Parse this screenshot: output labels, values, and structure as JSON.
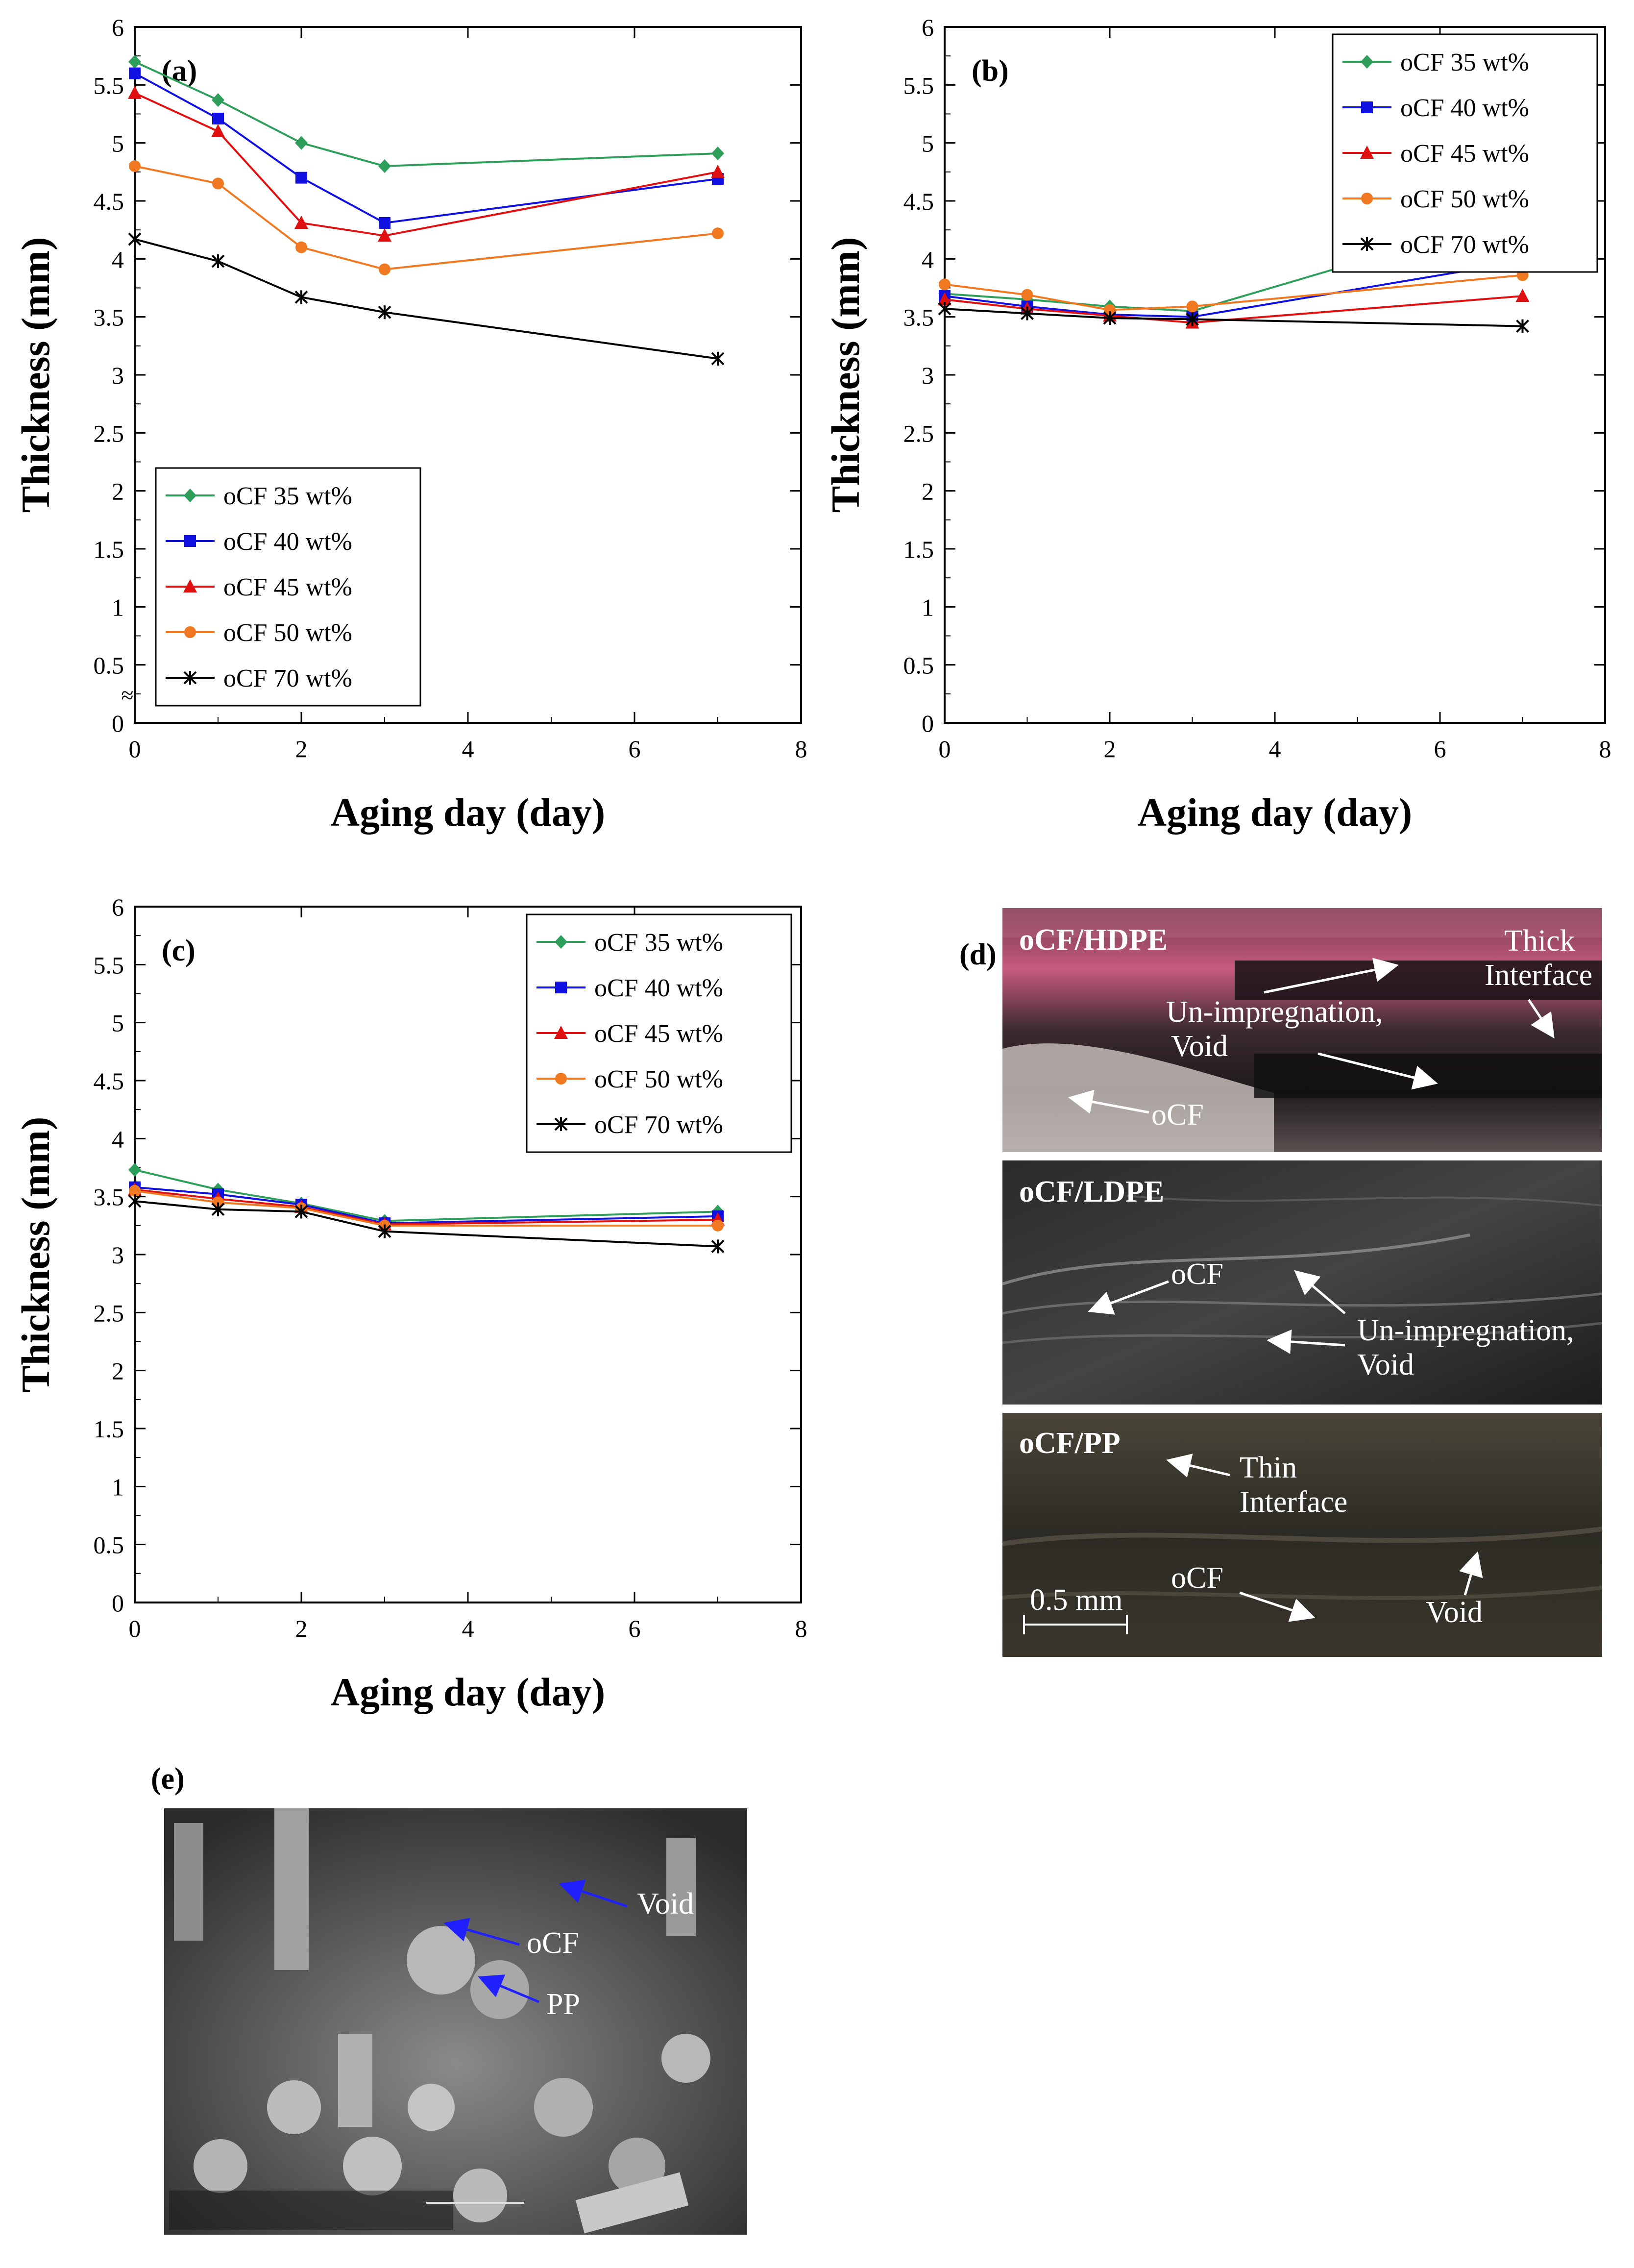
{
  "chart_data": [
    {
      "type": "line",
      "panel_label": "(a)",
      "xlabel": "Aging day (day)",
      "ylabel": "Thickness (mm)",
      "xlim": [
        0,
        8
      ],
      "ylim": [
        0,
        6
      ],
      "xticks": [
        "0",
        "2",
        "4",
        "6",
        "8"
      ],
      "yticks": [
        "0",
        "0.5",
        "1",
        "1.5",
        "2",
        "2.5",
        "3",
        "3.5",
        "4",
        "4.5",
        "5",
        "5.5",
        "6"
      ],
      "axis_break": "≈",
      "legend_position": "bottom-left",
      "x": [
        0,
        1,
        2,
        3,
        7
      ],
      "series": [
        {
          "name": "oCF 35 wt%",
          "color": "#2e9e5b",
          "marker": "diamond",
          "values": [
            5.7,
            5.37,
            5.0,
            4.8,
            4.91
          ]
        },
        {
          "name": "oCF 40 wt%",
          "color": "#1010e0",
          "marker": "square",
          "values": [
            5.6,
            5.21,
            4.7,
            4.31,
            4.69
          ]
        },
        {
          "name": "oCF 45 wt%",
          "color": "#e01010",
          "marker": "triangle",
          "values": [
            5.43,
            5.1,
            4.31,
            4.2,
            4.75
          ]
        },
        {
          "name": "oCF 50 wt%",
          "color": "#f07820",
          "marker": "circle",
          "values": [
            4.8,
            4.65,
            4.1,
            3.91,
            4.22
          ]
        },
        {
          "name": "oCF 70 wt%",
          "color": "#000000",
          "marker": "star",
          "values": [
            4.17,
            3.98,
            3.67,
            3.54,
            3.14
          ]
        }
      ]
    },
    {
      "type": "line",
      "panel_label": "(b)",
      "xlabel": "Aging day (day)",
      "ylabel": "Thickness (mm)",
      "xlim": [
        0,
        8
      ],
      "ylim": [
        0,
        6
      ],
      "xticks": [
        "0",
        "2",
        "4",
        "6",
        "8"
      ],
      "yticks": [
        "0",
        "0.5",
        "1",
        "1.5",
        "2",
        "2.5",
        "3",
        "3.5",
        "4",
        "4.5",
        "5",
        "5.5",
        "6"
      ],
      "legend_position": "top-right",
      "x": [
        0,
        1,
        2,
        3,
        7
      ],
      "series": [
        {
          "name": "oCF 35 wt%",
          "color": "#2e9e5b",
          "marker": "diamond",
          "values": [
            3.7,
            3.65,
            3.59,
            3.55,
            4.39
          ]
        },
        {
          "name": "oCF 40 wt%",
          "color": "#1010e0",
          "marker": "square",
          "values": [
            3.68,
            3.59,
            3.52,
            3.5,
            3.98
          ]
        },
        {
          "name": "oCF 45 wt%",
          "color": "#e01010",
          "marker": "triangle",
          "values": [
            3.65,
            3.57,
            3.51,
            3.45,
            3.68
          ]
        },
        {
          "name": "oCF 50 wt%",
          "color": "#f07820",
          "marker": "circle",
          "values": [
            3.78,
            3.69,
            3.56,
            3.59,
            3.86
          ]
        },
        {
          "name": "oCF 70 wt%",
          "color": "#000000",
          "marker": "star",
          "values": [
            3.57,
            3.53,
            3.49,
            3.48,
            3.42
          ]
        }
      ]
    },
    {
      "type": "line",
      "panel_label": "(c)",
      "xlabel": "Aging day (day)",
      "ylabel": "Thickness (mm)",
      "xlim": [
        0,
        8
      ],
      "ylim": [
        0,
        6
      ],
      "xticks": [
        "0",
        "2",
        "4",
        "6",
        "8"
      ],
      "yticks": [
        "0",
        "0.5",
        "1",
        "1.5",
        "2",
        "2.5",
        "3",
        "3.5",
        "4",
        "4.5",
        "5",
        "5.5",
        "6"
      ],
      "legend_position": "top-right",
      "x": [
        0,
        1,
        2,
        3,
        7
      ],
      "series": [
        {
          "name": "oCF 35 wt%",
          "color": "#2e9e5b",
          "marker": "diamond",
          "values": [
            3.73,
            3.56,
            3.44,
            3.29,
            3.37
          ]
        },
        {
          "name": "oCF 40 wt%",
          "color": "#1010e0",
          "marker": "square",
          "values": [
            3.58,
            3.52,
            3.43,
            3.27,
            3.33
          ]
        },
        {
          "name": "oCF 45 wt%",
          "color": "#e01010",
          "marker": "triangle",
          "values": [
            3.56,
            3.48,
            3.41,
            3.26,
            3.3
          ]
        },
        {
          "name": "oCF 50 wt%",
          "color": "#f07820",
          "marker": "circle",
          "values": [
            3.55,
            3.45,
            3.4,
            3.25,
            3.25
          ]
        },
        {
          "name": "oCF 70 wt%",
          "color": "#000000",
          "marker": "star",
          "values": [
            3.46,
            3.39,
            3.37,
            3.2,
            3.07
          ]
        }
      ]
    }
  ],
  "panel_d": {
    "panel_label": "(d)",
    "hdpe": {
      "title": "oCF/HDPE",
      "thick": "Thick",
      "interface": "Interface",
      "unimp": "Un-impregnation,",
      "void": "Void",
      "ocf": "oCF"
    },
    "ldpe": {
      "title": "oCF/LDPE",
      "ocf": "oCF",
      "unimp": "Un-impregnation,",
      "void": "Void"
    },
    "pp": {
      "title": "oCF/PP",
      "thin": "Thin",
      "interface": "Interface",
      "ocf": "oCF",
      "void": "Void",
      "scale": "0.5 mm"
    }
  },
  "panel_e": {
    "panel_label": "(e)",
    "void": "Void",
    "ocf": "oCF",
    "pp": "PP"
  }
}
